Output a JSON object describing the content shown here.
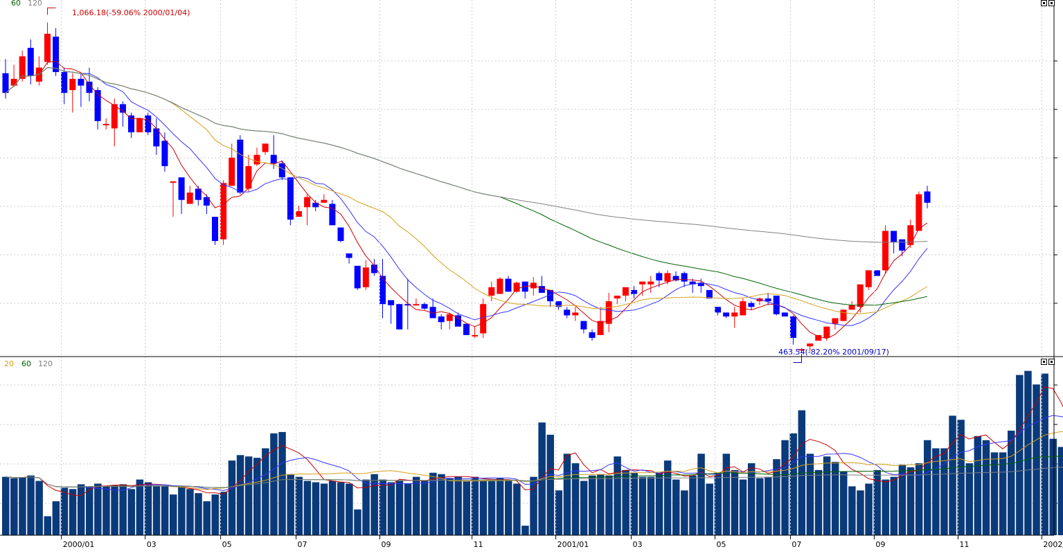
{
  "chart_data": [
    {
      "type": "candlestick",
      "legend": [
        {
          "label": "60",
          "color": "#006400"
        },
        {
          "label": "120",
          "color": "#808080"
        }
      ],
      "x_tick_labels": [
        "2000/01",
        "03",
        "05",
        "07",
        "09",
        "11",
        "2001/01",
        "03",
        "05",
        "07",
        "09",
        "11",
        "2002/"
      ],
      "annotations": {
        "high_label": "1,066.18(-59.06% 2000/01/04)",
        "high_value": 1066.18,
        "low_label": "463.54(-82.20% 2001/09/17)",
        "low_value": 463.54
      },
      "ylim": [
        458,
        1090
      ],
      "colors": {
        "up": "#ff0000",
        "down": "#0000ff",
        "ma5": "#cc0000",
        "ma10": "#3333ff",
        "ma20": "#d4a017",
        "ma60": "#006400",
        "ma120": "#808080"
      },
      "candles": [
        [
          960,
          925,
          985,
          915
        ],
        [
          938,
          950,
          975,
          935
        ],
        [
          950,
          990,
          1000,
          945
        ],
        [
          1005,
          955,
          1020,
          940
        ],
        [
          945,
          970,
          990,
          938
        ],
        [
          980,
          1030,
          1050,
          975
        ],
        [
          1025,
          962,
          1040,
          955
        ],
        [
          962,
          925,
          970,
          905
        ],
        [
          930,
          950,
          960,
          890
        ],
        [
          950,
          938,
          960,
          900
        ],
        [
          945,
          925,
          970,
          910
        ],
        [
          930,
          875,
          935,
          860
        ],
        [
          870,
          870,
          880,
          860
        ],
        [
          862,
          905,
          915,
          830
        ],
        [
          905,
          890,
          910,
          865
        ],
        [
          885,
          855,
          890,
          845
        ],
        [
          855,
          880,
          880,
          860
        ],
        [
          885,
          855,
          890,
          850
        ],
        [
          862,
          830,
          880,
          815
        ],
        [
          840,
          795,
          855,
          785
        ],
        [
          768,
          768,
          768,
          705
        ],
        [
          775,
          735,
          770,
          710
        ],
        [
          728,
          748,
          760,
          735
        ],
        [
          755,
          735,
          760,
          725
        ],
        [
          740,
          725,
          745,
          710
        ],
        [
          705,
          662,
          705,
          655
        ],
        [
          665,
          765,
          770,
          655
        ],
        [
          760,
          810,
          835,
          760
        ],
        [
          842,
          748,
          850,
          745
        ],
        [
          755,
          795,
          815,
          750
        ],
        [
          798,
          815,
          828,
          795
        ],
        [
          820,
          835,
          835,
          815
        ],
        [
          815,
          800,
          850,
          790
        ],
        [
          800,
          775,
          805,
          770
        ],
        [
          775,
          700,
          775,
          690
        ],
        [
          705,
          715,
          725,
          705
        ],
        [
          722,
          740,
          745,
          690
        ],
        [
          730,
          722,
          735,
          715
        ],
        [
          730,
          735,
          745,
          730
        ],
        [
          728,
          690,
          735,
          690
        ],
        [
          686,
          662,
          686,
          660
        ],
        [
          640,
          632,
          640,
          622
        ],
        [
          618,
          578,
          615,
          575
        ],
        [
          580,
          615,
          628,
          575
        ],
        [
          620,
          605,
          630,
          600
        ],
        [
          600,
          550,
          630,
          525
        ],
        [
          557,
          548,
          550,
          515
        ],
        [
          550,
          505,
          550,
          505
        ],
        [
          550,
          548,
          595,
          505
        ],
        [
          550,
          550,
          560,
          550
        ],
        [
          550,
          542,
          553,
          540
        ],
        [
          545,
          525,
          560,
          528
        ],
        [
          528,
          518,
          532,
          505
        ],
        [
          520,
          532,
          535,
          505
        ],
        [
          530,
          510,
          535,
          512
        ],
        [
          515,
          495,
          515,
          495
        ],
        [
          495,
          495,
          510,
          490
        ],
        [
          498,
          550,
          560,
          490
        ],
        [
          565,
          580,
          590,
          555
        ],
        [
          568,
          595,
          598,
          580
        ],
        [
          595,
          572,
          600,
          572
        ],
        [
          572,
          588,
          590,
          570
        ],
        [
          590,
          572,
          590,
          560
        ],
        [
          578,
          588,
          598,
          565
        ],
        [
          582,
          570,
          600,
          570
        ],
        [
          575,
          555,
          570,
          545
        ],
        [
          555,
          545,
          555,
          540
        ],
        [
          540,
          530,
          545,
          525
        ],
        [
          530,
          535,
          545,
          520
        ],
        [
          520,
          505,
          515,
          498
        ],
        [
          500,
          490,
          505,
          485
        ],
        [
          495,
          520,
          545,
          500
        ],
        [
          515,
          555,
          570,
          500
        ],
        [
          560,
          565,
          565,
          550
        ],
        [
          565,
          580,
          578,
          555
        ],
        [
          575,
          568,
          582,
          560
        ],
        [
          585,
          590,
          590,
          565
        ],
        [
          585,
          590,
          600,
          570
        ],
        [
          605,
          592,
          608,
          580
        ],
        [
          590,
          605,
          610,
          585
        ],
        [
          600,
          592,
          608,
          590
        ],
        [
          605,
          590,
          608,
          580
        ],
        [
          590,
          585,
          595,
          570
        ],
        [
          588,
          582,
          595,
          570
        ],
        [
          575,
          560,
          570,
          560
        ],
        [
          545,
          535,
          545,
          530
        ],
        [
          535,
          528,
          530,
          525
        ],
        [
          528,
          535,
          545,
          508
        ],
        [
          530,
          555,
          560,
          530
        ],
        [
          552,
          545,
          555,
          540
        ],
        [
          555,
          560,
          562,
          548
        ],
        [
          560,
          555,
          570,
          548
        ],
        [
          565,
          532,
          560,
          530
        ],
        [
          535,
          528,
          535,
          528
        ],
        [
          528,
          490,
          530,
          478
        ],
        [
          470,
          470,
          472,
          464
        ],
        [
          475,
          480,
          480,
          466
        ],
        [
          485,
          495,
          495,
          488
        ],
        [
          490,
          510,
          510,
          485
        ],
        [
          515,
          525,
          525,
          505
        ],
        [
          520,
          540,
          540,
          520
        ],
        [
          540,
          548,
          555,
          545
        ],
        [
          545,
          585,
          580,
          535
        ],
        [
          580,
          610,
          610,
          575
        ],
        [
          610,
          600,
          610,
          600
        ],
        [
          610,
          680,
          690,
          605
        ],
        [
          680,
          660,
          680,
          640
        ],
        [
          665,
          645,
          655,
          635
        ],
        [
          655,
          690,
          700,
          650
        ],
        [
          680,
          745,
          750,
          690
        ],
        [
          750,
          730,
          760,
          720
        ]
      ]
    },
    {
      "type": "bar",
      "legend": [
        {
          "label": "20",
          "color": "#d4a017"
        },
        {
          "label": "60",
          "color": "#006400"
        },
        {
          "label": "120",
          "color": "#808080"
        }
      ],
      "x_tick_labels": [
        "2000/01",
        "03",
        "05",
        "07",
        "09",
        "11",
        "2001/01",
        "03",
        "05",
        "07",
        "09",
        "11",
        "2002/"
      ],
      "ylim": [
        0,
        260
      ],
      "color": "#0a3a7a",
      "values": [
        86,
        84,
        85,
        88,
        80,
        28,
        50,
        70,
        68,
        75,
        72,
        76,
        72,
        74,
        75,
        68,
        82,
        78,
        72,
        72,
        60,
        72,
        68,
        62,
        50,
        60,
        64,
        110,
        118,
        116,
        114,
        128,
        150,
        152,
        90,
        86,
        80,
        78,
        76,
        80,
        78,
        76,
        38,
        82,
        90,
        82,
        78,
        80,
        76,
        86,
        80,
        92,
        90,
        84,
        86,
        80,
        86,
        80,
        80,
        84,
        80,
        76,
        14,
        86,
        166,
        148,
        66,
        120,
        106,
        80,
        88,
        90,
        88,
        116,
        96,
        92,
        86,
        86,
        92,
        110,
        82,
        66,
        88,
        120,
        76,
        92,
        120,
        96,
        82,
        106,
        84,
        86,
        112,
        140,
        150,
        184,
        120,
        96,
        116,
        108,
        94,
        72,
        66,
        76,
        96,
        82,
        86,
        104,
        100,
        106,
        140,
        128,
        128,
        176,
        170,
        106,
        146,
        140,
        122,
        122,
        154,
        236,
        242,
        222,
        238,
        142,
        130,
        104,
        104,
        254
      ]
    }
  ]
}
